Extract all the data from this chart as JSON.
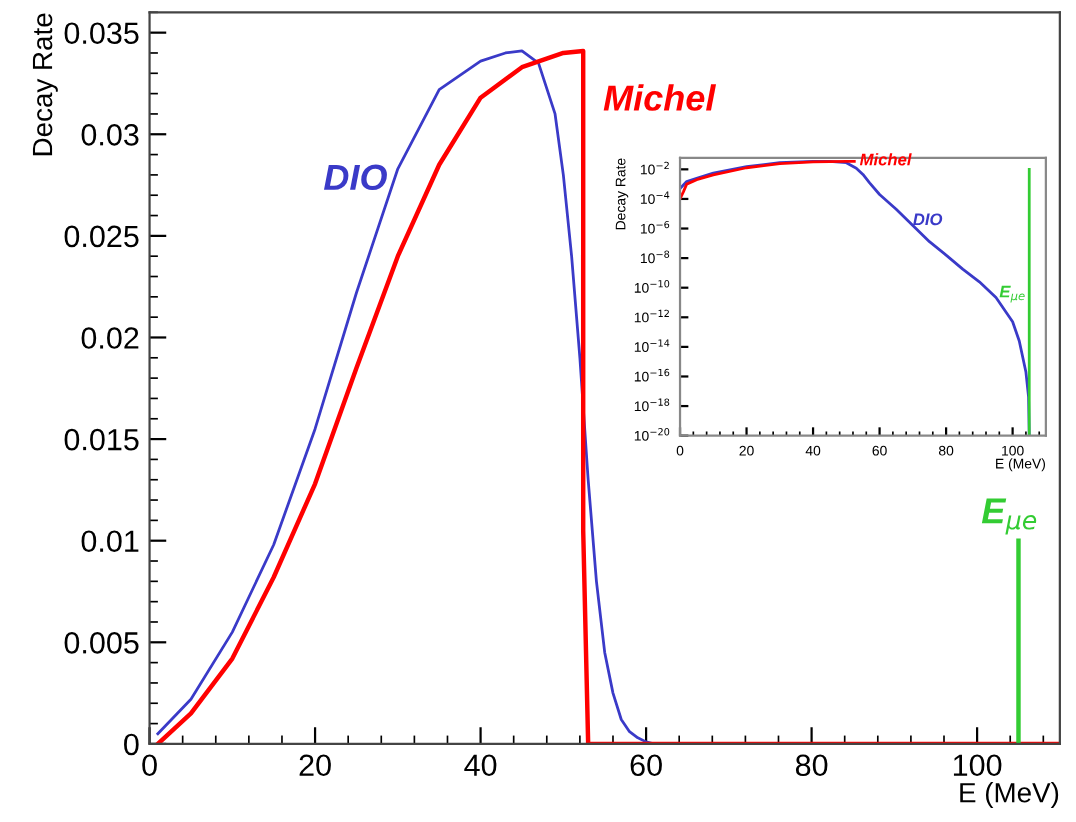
{
  "chart_data": [
    {
      "type": "line",
      "xlabel": "E (MeV)",
      "ylabel": "Decay Rate",
      "xlim": [
        0,
        110
      ],
      "ylim": [
        0,
        0.036
      ],
      "xticks": [
        0,
        20,
        40,
        60,
        80,
        100
      ],
      "yticks": [
        0,
        0.005,
        0.01,
        0.015,
        0.02,
        0.025,
        0.03,
        0.035
      ],
      "grid": false,
      "legend": false,
      "marker": "none",
      "line_style": "solid",
      "series": [
        {
          "name": "DIO",
          "color": "#3a3ac8",
          "x": [
            1,
            5,
            10,
            15,
            20,
            25,
            30,
            35,
            40,
            43,
            45,
            47,
            49,
            50,
            51,
            52,
            53,
            54,
            55,
            56,
            57,
            58,
            59,
            60,
            61
          ],
          "values": [
            0.0005,
            0.0022,
            0.0055,
            0.0098,
            0.0155,
            0.0222,
            0.0283,
            0.0322,
            0.0336,
            0.034,
            0.0341,
            0.0335,
            0.031,
            0.028,
            0.024,
            0.019,
            0.013,
            0.008,
            0.0045,
            0.0025,
            0.0012,
            0.0006,
            0.0003,
            0.0001,
            0
          ]
        },
        {
          "name": "Michel",
          "color": "#ff0000",
          "x": [
            1,
            5,
            10,
            15,
            20,
            25,
            30,
            35,
            40,
            45,
            50,
            52.4,
            52.4,
            53,
            110
          ],
          "values": [
            0,
            0.0015,
            0.0042,
            0.0082,
            0.0128,
            0.0185,
            0.024,
            0.0285,
            0.0318,
            0.0333,
            0.034,
            0.0341,
            0.0105,
            0,
            0
          ]
        },
        {
          "name": "E$_{μe}$",
          "color": "#33cc33",
          "x": [
            105,
            105
          ],
          "values": [
            0,
            0.01
          ]
        }
      ]
    },
    {
      "type": "line",
      "xlabel": "E (MeV)",
      "ylabel": "Decay Rate",
      "xlim": [
        0,
        110
      ],
      "ylim": [
        1e-20,
        0.06
      ],
      "log": true,
      "xticks": [
        0,
        20,
        40,
        60,
        80,
        100
      ],
      "yticks": [
        {
          "value": 1e-20,
          "label": "10$^{−20}$"
        },
        {
          "value": 1e-18,
          "label": "10$^{−18}$"
        },
        {
          "value": 1e-16,
          "label": "10$^{−16}$"
        },
        {
          "value": 1e-14,
          "label": "10$^{−14}$"
        },
        {
          "value": 1e-12,
          "label": "10$^{−12}$"
        },
        {
          "value": 1e-10,
          "label": "10$^{−10}$"
        },
        {
          "value": 1e-08,
          "label": "10$^{−8}$"
        },
        {
          "value": 1e-06,
          "label": "10$^{−6}$"
        },
        {
          "value": 0.0001,
          "label": "10$^{−4}$"
        },
        {
          "value": 0.01,
          "label": "10$^{−2}$"
        }
      ],
      "grid": false,
      "legend": false,
      "marker": "none",
      "line_style": "solid",
      "series": [
        {
          "name": "DIO",
          "color": "#3a3ac8",
          "x": [
            0,
            2,
            5,
            10,
            20,
            30,
            40,
            45,
            50,
            53,
            55,
            57,
            60,
            65,
            70,
            75,
            80,
            85,
            90,
            95,
            100,
            102,
            104,
            104.8,
            105
          ],
          "values": [
            0.0005,
            0.0015,
            0.0025,
            0.0055,
            0.015,
            0.028,
            0.034,
            0.034,
            0.028,
            0.012,
            0.0045,
            0.0012,
            0.0002,
            2e-05,
            1.6e-06,
            1.3e-07,
            1.6e-08,
            1.8e-09,
            2.5e-10,
            2.2e-11,
            5e-13,
            2.5e-14,
            2e-16,
            4e-18,
            1e-20
          ]
        },
        {
          "name": "Michel",
          "color": "#ff0000",
          "x": [
            0,
            1,
            2,
            5,
            10,
            20,
            30,
            40,
            50,
            52.4
          ],
          "values": [
            0.0001,
            0.0003,
            0.001,
            0.002,
            0.0042,
            0.0128,
            0.024,
            0.0318,
            0.034,
            0.0341
          ]
        },
        {
          "name": "E$_{μe}$",
          "color": "#33cc33",
          "x": [
            105,
            105
          ],
          "values": [
            1e-20,
            0.01
          ]
        }
      ]
    }
  ]
}
